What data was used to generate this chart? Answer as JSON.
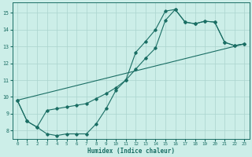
{
  "xlabel": "Humidex (Indice chaleur)",
  "bg_color": "#cceee8",
  "grid_color": "#aad4ce",
  "line_color": "#1a6e64",
  "xlim": [
    -0.5,
    23.5
  ],
  "ylim": [
    7.5,
    15.6
  ],
  "xticks": [
    0,
    1,
    2,
    3,
    4,
    5,
    6,
    7,
    8,
    9,
    10,
    11,
    12,
    13,
    14,
    15,
    16,
    17,
    18,
    19,
    20,
    21,
    22,
    23
  ],
  "yticks": [
    8,
    9,
    10,
    11,
    12,
    13,
    14,
    15
  ],
  "line1_x": [
    0,
    1,
    2,
    3,
    4,
    5,
    6,
    7,
    8,
    9,
    10,
    11,
    12,
    13,
    14,
    15,
    16,
    17,
    18,
    19,
    20,
    21,
    22,
    23
  ],
  "line1_y": [
    9.8,
    8.55,
    8.2,
    7.8,
    7.7,
    7.8,
    7.8,
    7.8,
    8.4,
    9.3,
    10.4,
    11.0,
    12.65,
    13.3,
    14.0,
    15.1,
    15.2,
    14.45,
    14.35,
    14.5,
    14.45,
    13.25,
    13.05,
    13.15
  ],
  "line2_x": [
    0,
    1,
    2,
    3,
    4,
    5,
    6,
    7,
    8,
    9,
    10,
    11,
    12,
    13,
    14,
    15,
    16,
    17,
    18,
    19,
    20,
    21,
    22,
    23
  ],
  "line2_y": [
    9.8,
    8.55,
    8.2,
    9.2,
    9.3,
    9.4,
    9.5,
    9.6,
    9.9,
    10.2,
    10.55,
    11.0,
    11.65,
    12.3,
    12.9,
    14.55,
    15.2,
    14.45,
    14.35,
    14.5,
    14.45,
    13.25,
    13.05,
    13.15
  ],
  "line3_x": [
    0,
    23
  ],
  "line3_y": [
    9.8,
    13.15
  ]
}
